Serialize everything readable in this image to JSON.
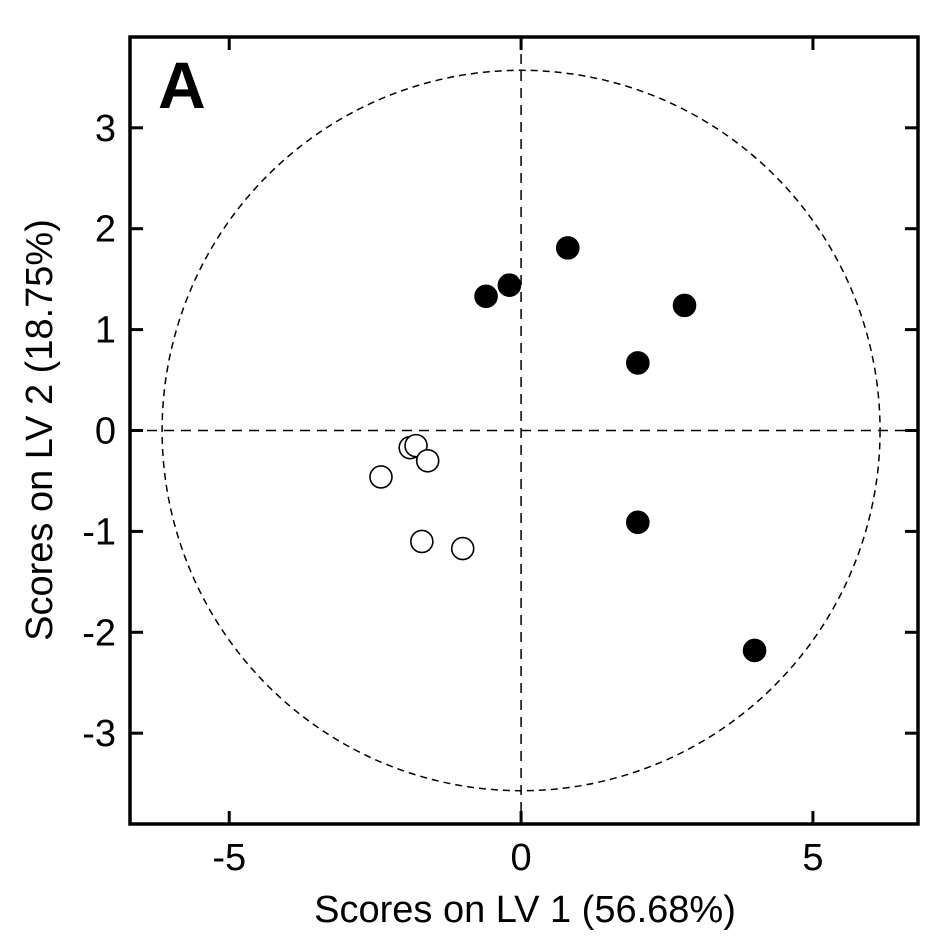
{
  "chart_data": {
    "type": "scatter",
    "panel_label": "A",
    "xlabel": "Scores on LV 1 (56.68%)",
    "ylabel": "Scores on LV 2 (18.75%)",
    "xlim": [
      -6.7,
      6.8
    ],
    "ylim": [
      -3.9,
      3.9
    ],
    "x_ticks": [
      -5,
      0,
      5
    ],
    "x_tick_labels": [
      "-5",
      "0",
      "5"
    ],
    "y_ticks": [
      -3,
      -2,
      -1,
      0,
      1,
      2,
      3
    ],
    "y_tick_labels": [
      "-3",
      "-2",
      "-1",
      "0",
      "1",
      "2",
      "3"
    ],
    "grid": false,
    "reference_lines": {
      "x": 0,
      "y": 0,
      "style": "dashed"
    },
    "confidence_ellipse": {
      "center": [
        0,
        0
      ],
      "rx": 6.15,
      "ry": 3.57,
      "style": "dashed"
    },
    "series": [
      {
        "marker": "filled-circle",
        "color": "#000000",
        "points": [
          {
            "x": -0.6,
            "y": 1.33
          },
          {
            "x": -0.2,
            "y": 1.44
          },
          {
            "x": 0.8,
            "y": 1.81
          },
          {
            "x": 2.8,
            "y": 1.24
          },
          {
            "x": 2.0,
            "y": 0.67
          },
          {
            "x": 2.0,
            "y": -0.91
          },
          {
            "x": 4.0,
            "y": -2.18
          }
        ]
      },
      {
        "marker": "open-circle",
        "color": "#000000",
        "points": [
          {
            "x": -1.9,
            "y": -0.17
          },
          {
            "x": -1.8,
            "y": -0.15
          },
          {
            "x": -1.6,
            "y": -0.3
          },
          {
            "x": -2.4,
            "y": -0.46
          },
          {
            "x": -1.7,
            "y": -1.1
          },
          {
            "x": -1.0,
            "y": -1.17
          }
        ]
      }
    ]
  }
}
